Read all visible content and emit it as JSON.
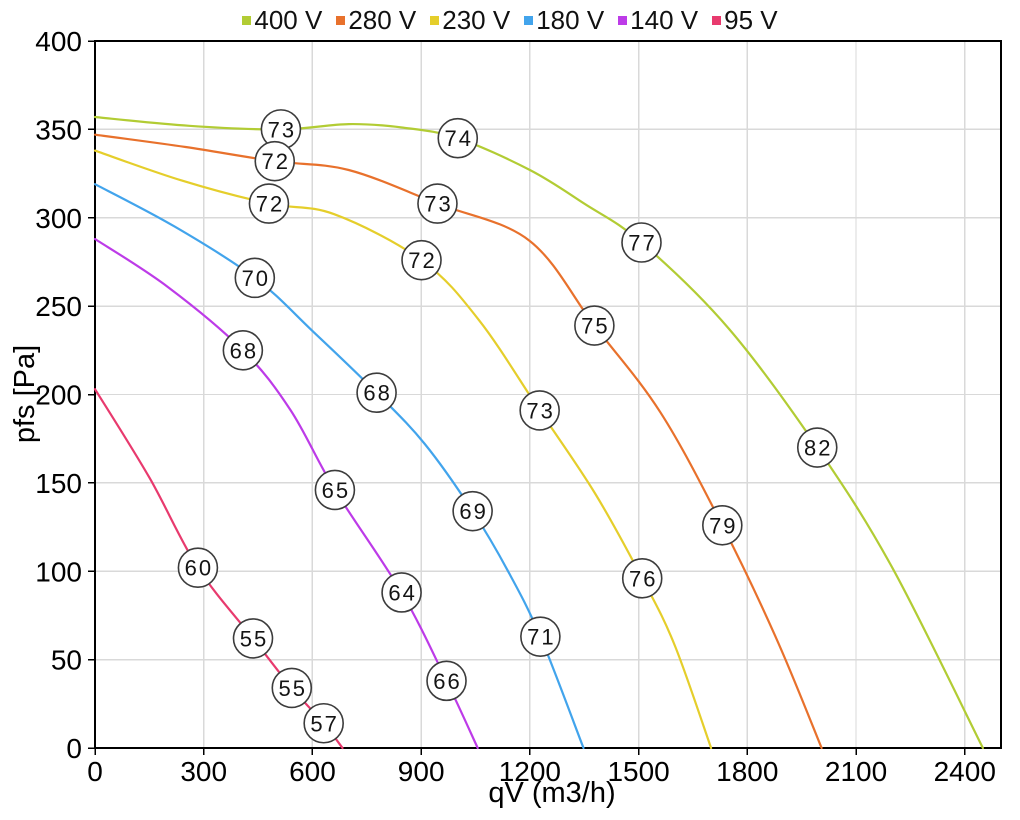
{
  "chart_data": {
    "type": "line",
    "title": "",
    "xlabel": "qV (m3/h)",
    "ylabel": "pfs [Pa]",
    "xlim": [
      0,
      2500
    ],
    "ylim": [
      0,
      400
    ],
    "xticks": [
      0,
      300,
      600,
      900,
      1200,
      1500,
      1800,
      2100,
      2400
    ],
    "yticks": [
      0,
      50,
      100,
      150,
      200,
      250,
      300,
      350,
      400
    ],
    "grid": true,
    "legend_position": "top-center",
    "series": [
      {
        "name": "400 V",
        "color": "#b2cc34",
        "points": [
          [
            0,
            357
          ],
          [
            260,
            352
          ],
          [
            513,
            350
          ],
          [
            700,
            353
          ],
          [
            850,
            351
          ],
          [
            1001,
            345
          ],
          [
            1200,
            327
          ],
          [
            1350,
            308
          ],
          [
            1508,
            286
          ],
          [
            1750,
            237
          ],
          [
            1993,
            170
          ],
          [
            2200,
            102
          ],
          [
            2450,
            0
          ]
        ],
        "markers": [
          {
            "qv": 513,
            "pfs": 350,
            "label": "73"
          },
          {
            "qv": 1001,
            "pfs": 345,
            "label": "74"
          },
          {
            "qv": 1508,
            "pfs": 286,
            "label": "77"
          },
          {
            "qv": 1993,
            "pfs": 170,
            "label": "82"
          }
        ]
      },
      {
        "name": "280 V",
        "color": "#e8712c",
        "points": [
          [
            0,
            347
          ],
          [
            250,
            340
          ],
          [
            496,
            332
          ],
          [
            700,
            327
          ],
          [
            945,
            308
          ],
          [
            1199,
            287
          ],
          [
            1378,
            239
          ],
          [
            1560,
            190
          ],
          [
            1731,
            126
          ],
          [
            1880,
            62
          ],
          [
            2005,
            0
          ]
        ],
        "markers": [
          {
            "qv": 496,
            "pfs": 332,
            "label": "72"
          },
          {
            "qv": 945,
            "pfs": 308,
            "label": "73"
          },
          {
            "qv": 1378,
            "pfs": 239,
            "label": "75"
          },
          {
            "qv": 1731,
            "pfs": 126,
            "label": "79"
          }
        ]
      },
      {
        "name": "230 V",
        "color": "#e5ce2b",
        "points": [
          [
            0,
            338
          ],
          [
            240,
            321
          ],
          [
            480,
            308
          ],
          [
            660,
            302
          ],
          [
            901,
            276
          ],
          [
            1060,
            242
          ],
          [
            1227,
            191
          ],
          [
            1380,
            144
          ],
          [
            1510,
            96
          ],
          [
            1600,
            58
          ],
          [
            1700,
            0
          ]
        ],
        "markers": [
          {
            "qv": 480,
            "pfs": 308,
            "label": "72"
          },
          {
            "qv": 901,
            "pfs": 276,
            "label": "72"
          },
          {
            "qv": 1227,
            "pfs": 191,
            "label": "73"
          },
          {
            "qv": 1510,
            "pfs": 96,
            "label": "76"
          }
        ]
      },
      {
        "name": "180 V",
        "color": "#42a4ec",
        "points": [
          [
            0,
            319
          ],
          [
            220,
            295
          ],
          [
            441,
            266
          ],
          [
            600,
            236
          ],
          [
            777,
            201
          ],
          [
            910,
            172
          ],
          [
            1042,
            134
          ],
          [
            1140,
            100
          ],
          [
            1229,
            63
          ],
          [
            1348,
            0
          ]
        ],
        "markers": [
          {
            "qv": 441,
            "pfs": 266,
            "label": "70"
          },
          {
            "qv": 777,
            "pfs": 201,
            "label": "68"
          },
          {
            "qv": 1042,
            "pfs": 134,
            "label": "69"
          },
          {
            "qv": 1229,
            "pfs": 63,
            "label": "71"
          }
        ]
      },
      {
        "name": "140 V",
        "color": "#bd3be8",
        "points": [
          [
            0,
            288
          ],
          [
            200,
            261
          ],
          [
            408,
            225
          ],
          [
            540,
            191
          ],
          [
            662,
            146
          ],
          [
            846,
            88
          ],
          [
            970,
            38
          ],
          [
            1056,
            0
          ]
        ],
        "markers": [
          {
            "qv": 408,
            "pfs": 225,
            "label": "68"
          },
          {
            "qv": 662,
            "pfs": 146,
            "label": "65"
          },
          {
            "qv": 846,
            "pfs": 88,
            "label": "64"
          },
          {
            "qv": 970,
            "pfs": 38,
            "label": "66"
          }
        ]
      },
      {
        "name": "95 V",
        "color": "#e83a6e",
        "points": [
          [
            0,
            203
          ],
          [
            150,
            153
          ],
          [
            284,
            102
          ],
          [
            436,
            62
          ],
          [
            543,
            34
          ],
          [
            631,
            14
          ],
          [
            683,
            0
          ]
        ],
        "markers": [
          {
            "qv": 284,
            "pfs": 102,
            "label": "60"
          },
          {
            "qv": 436,
            "pfs": 62,
            "label": "55"
          },
          {
            "qv": 543,
            "pfs": 34,
            "label": "55"
          },
          {
            "qv": 631,
            "pfs": 14,
            "label": "57"
          }
        ]
      }
    ],
    "style": {
      "grid_color": "#d9d9d9",
      "axis_color": "#000000",
      "marker_fill": "#ffffff",
      "marker_stroke": "#3c3c3c",
      "text_color": "#000000"
    }
  }
}
